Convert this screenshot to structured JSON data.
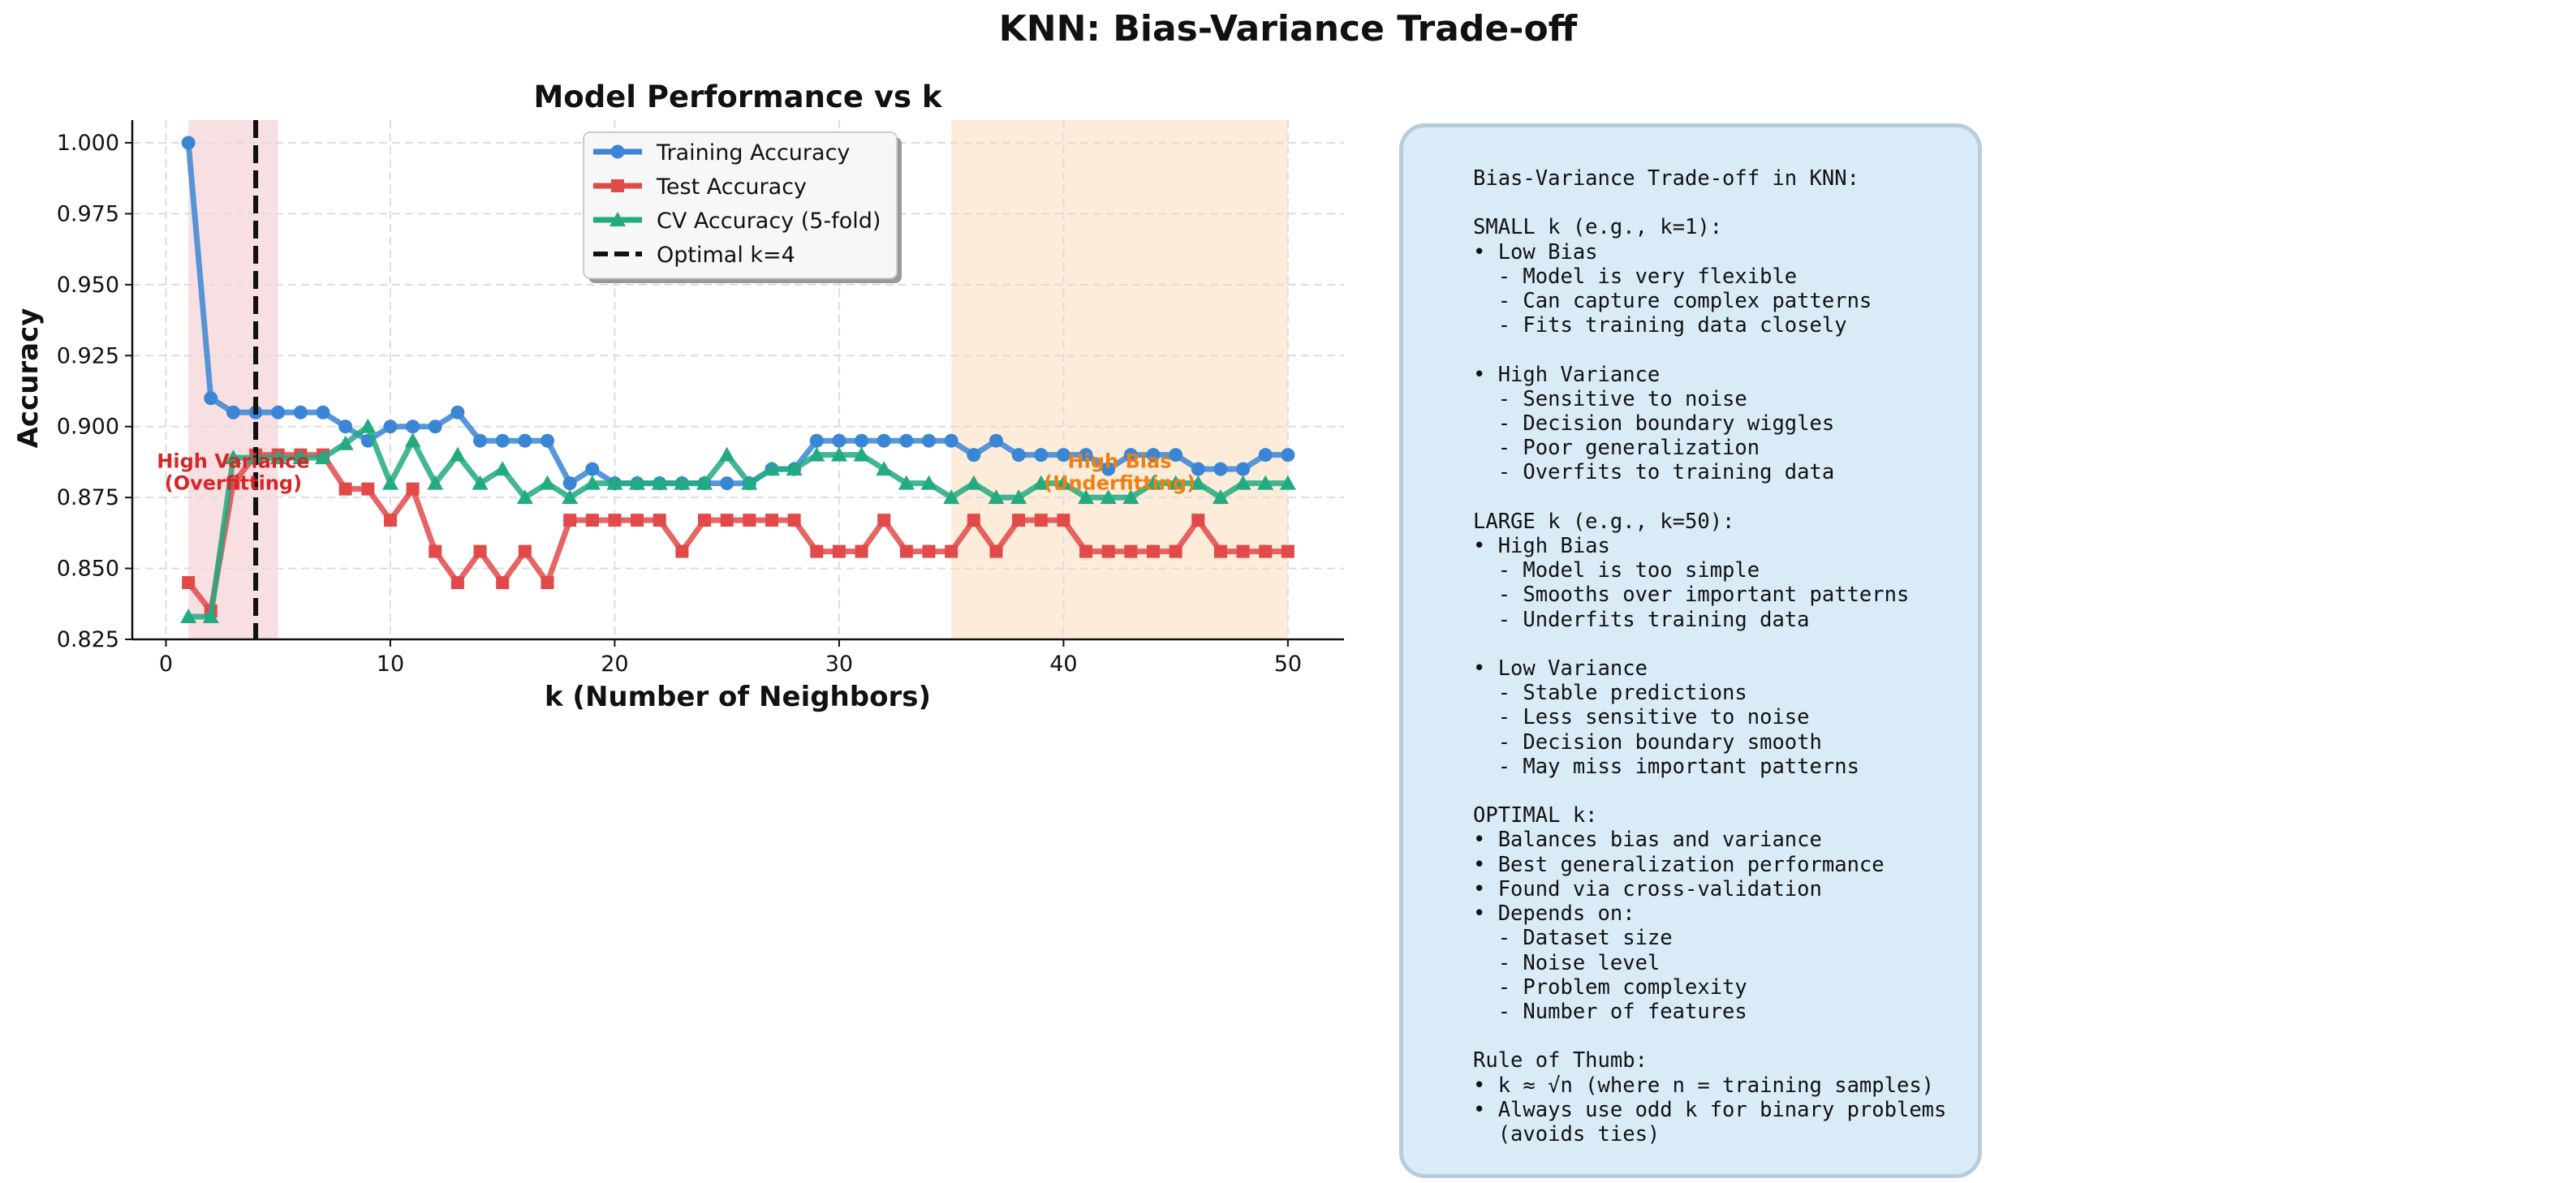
{
  "suptitle": "KNN: Bias-Variance Trade-off",
  "colors": {
    "training": "#3a86d4",
    "test": "#e24a4a",
    "cv": "#22aa80",
    "optimal": "#111111",
    "overfit_region": "#f6d6d8",
    "underfit_region": "#fbe5cc",
    "overfit_text": "#d62728",
    "underfit_text": "#ef7f12",
    "info_bg": "#d9ebf7",
    "info_border": "#b9ccdb"
  },
  "chart_data": {
    "type": "line",
    "title": "Model Performance vs k",
    "xlabel": "k (Number of Neighbors)",
    "ylabel": "Accuracy",
    "xlim": [
      -1.5,
      52.5
    ],
    "ylim": [
      0.825,
      1.008
    ],
    "x_ticks": [
      0,
      10,
      20,
      30,
      40,
      50
    ],
    "x_tick_labels": [
      "0",
      "10",
      "20",
      "30",
      "40",
      "50"
    ],
    "y_ticks": [
      0.825,
      0.85,
      0.875,
      0.9,
      0.925,
      0.95,
      0.975,
      1.0
    ],
    "y_tick_labels": [
      "0.825",
      "0.850",
      "0.875",
      "0.900",
      "0.925",
      "0.950",
      "0.975",
      "1.000"
    ],
    "grid": true,
    "legend_position": "upper center",
    "x": [
      1,
      2,
      3,
      4,
      5,
      6,
      7,
      8,
      9,
      10,
      11,
      12,
      13,
      14,
      15,
      16,
      17,
      18,
      19,
      20,
      21,
      22,
      23,
      24,
      25,
      26,
      27,
      28,
      29,
      30,
      31,
      32,
      33,
      34,
      35,
      36,
      37,
      38,
      39,
      40,
      41,
      42,
      43,
      44,
      45,
      46,
      47,
      48,
      49,
      50
    ],
    "series": [
      {
        "name": "Training Accuracy",
        "marker": "circle",
        "values": [
          1.0,
          0.91,
          0.905,
          0.905,
          0.905,
          0.905,
          0.905,
          0.9,
          0.895,
          0.9,
          0.9,
          0.9,
          0.905,
          0.895,
          0.895,
          0.895,
          0.895,
          0.88,
          0.885,
          0.88,
          0.88,
          0.88,
          0.88,
          0.88,
          0.88,
          0.88,
          0.885,
          0.885,
          0.895,
          0.895,
          0.895,
          0.895,
          0.895,
          0.895,
          0.895,
          0.89,
          0.895,
          0.89,
          0.89,
          0.89,
          0.89,
          0.885,
          0.89,
          0.89,
          0.89,
          0.885,
          0.885,
          0.885,
          0.89,
          0.89
        ]
      },
      {
        "name": "Test Accuracy",
        "marker": "square",
        "values": [
          0.845,
          0.835,
          0.88,
          0.89,
          0.89,
          0.89,
          0.89,
          0.878,
          0.878,
          0.867,
          0.878,
          0.856,
          0.845,
          0.856,
          0.845,
          0.856,
          0.845,
          0.867,
          0.867,
          0.867,
          0.867,
          0.867,
          0.856,
          0.867,
          0.867,
          0.867,
          0.867,
          0.867,
          0.856,
          0.856,
          0.856,
          0.867,
          0.856,
          0.856,
          0.856,
          0.867,
          0.856,
          0.867,
          0.867,
          0.867,
          0.856,
          0.856,
          0.856,
          0.856,
          0.856,
          0.867,
          0.856,
          0.856,
          0.856,
          0.856
        ]
      },
      {
        "name": "CV Accuracy (5-fold)",
        "marker": "triangle",
        "values": [
          0.833,
          0.833,
          0.889,
          0.889,
          0.889,
          0.889,
          0.889,
          0.894,
          0.9,
          0.88,
          0.895,
          0.88,
          0.89,
          0.88,
          0.885,
          0.875,
          0.88,
          0.875,
          0.88,
          0.88,
          0.88,
          0.88,
          0.88,
          0.88,
          0.89,
          0.88,
          0.885,
          0.885,
          0.89,
          0.89,
          0.89,
          0.885,
          0.88,
          0.88,
          0.875,
          0.88,
          0.875,
          0.875,
          0.88,
          0.88,
          0.875,
          0.875,
          0.875,
          0.88,
          0.88,
          0.88,
          0.875,
          0.88,
          0.88,
          0.88
        ]
      }
    ],
    "optimal_line": {
      "x": 4,
      "label": "Optimal k=4"
    },
    "regions": [
      {
        "x_start": 1,
        "x_end": 5,
        "label_line1": "High Variance",
        "label_line2": "(Overfitting)",
        "label_x": 3,
        "label_y": 0.8855
      },
      {
        "x_start": 35,
        "x_end": 50,
        "label_line1": "High Bias",
        "label_line2": "(Underfitting)",
        "label_x": 42.5,
        "label_y": 0.8855
      }
    ]
  },
  "info_box": {
    "lines": [
      "Bias-Variance Trade-off in KNN:",
      "",
      "SMALL k (e.g., k=1):",
      "• Low Bias",
      "  - Model is very flexible",
      "  - Can capture complex patterns",
      "  - Fits training data closely",
      "",
      "• High Variance",
      "  - Sensitive to noise",
      "  - Decision boundary wiggles",
      "  - Poor generalization",
      "  - Overfits to training data",
      "",
      "LARGE k (e.g., k=50):",
      "• High Bias",
      "  - Model is too simple",
      "  - Smooths over important patterns",
      "  - Underfits training data",
      "",
      "• Low Variance",
      "  - Stable predictions",
      "  - Less sensitive to noise",
      "  - Decision boundary smooth",
      "  - May miss important patterns",
      "",
      "OPTIMAL k:",
      "• Balances bias and variance",
      "• Best generalization performance",
      "• Found via cross-validation",
      "• Depends on:",
      "  - Dataset size",
      "  - Noise level",
      "  - Problem complexity",
      "  - Number of features",
      "",
      "Rule of Thumb:",
      "• k ≈ √n (where n = training samples)",
      "• Always use odd k for binary problems",
      "  (avoids ties)"
    ]
  }
}
